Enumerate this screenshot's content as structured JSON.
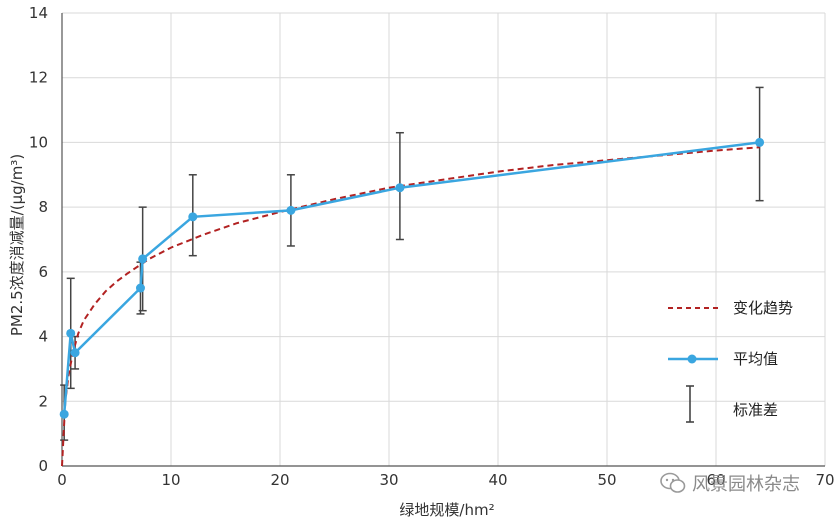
{
  "chart_data": {
    "type": "line",
    "xlabel": "绿地规模/hm²",
    "ylabel": "PM2.5浓度消减量/(μg/m³)",
    "xlim": [
      0,
      70
    ],
    "ylim": [
      0,
      14
    ],
    "x_ticks": [
      "0",
      "10",
      "20",
      "30",
      "40",
      "50",
      "60",
      "70"
    ],
    "y_ticks": [
      "0",
      "2",
      "4",
      "6",
      "8",
      "10",
      "12",
      "14"
    ],
    "grid": true,
    "legend_position": "right",
    "series": [
      {
        "name": "平均值",
        "kind": "line-markers",
        "color": "#3aa6e0",
        "x": [
          0.2,
          0.8,
          1.2,
          7.2,
          7.4,
          12.0,
          21.0,
          31.0,
          64.0
        ],
        "y": [
          1.6,
          4.1,
          3.5,
          5.5,
          6.4,
          7.7,
          7.9,
          8.6,
          10.0
        ]
      },
      {
        "name": "变化趋势",
        "kind": "dashed-curve",
        "color": "#b22222",
        "x": [
          0.0,
          0.3,
          0.6,
          1.0,
          1.5,
          2.0,
          3.0,
          4.0,
          5.0,
          6.0,
          8.0,
          10.0,
          13.0,
          16.0,
          20.0,
          25.0,
          30.0,
          35.0,
          40.0,
          45.0,
          50.0,
          55.0,
          60.0,
          64.0
        ],
        "y": [
          0.0,
          2.0,
          2.8,
          3.5,
          4.1,
          4.5,
          5.0,
          5.4,
          5.7,
          5.95,
          6.4,
          6.75,
          7.15,
          7.5,
          7.85,
          8.25,
          8.6,
          8.85,
          9.1,
          9.3,
          9.45,
          9.6,
          9.75,
          9.85
        ]
      },
      {
        "name": "标准差",
        "kind": "error-bars",
        "color": "#444444",
        "x": [
          0.2,
          0.8,
          1.2,
          7.2,
          7.4,
          12.0,
          21.0,
          31.0,
          64.0
        ],
        "low": [
          0.8,
          2.4,
          3.0,
          4.7,
          4.8,
          6.5,
          6.8,
          7.0,
          8.2
        ],
        "high": [
          2.5,
          5.8,
          4.0,
          6.3,
          8.0,
          9.0,
          9.0,
          10.3,
          11.7
        ]
      }
    ]
  },
  "watermark": {
    "text": "风景园林杂志",
    "icon": "wechat-icon"
  }
}
